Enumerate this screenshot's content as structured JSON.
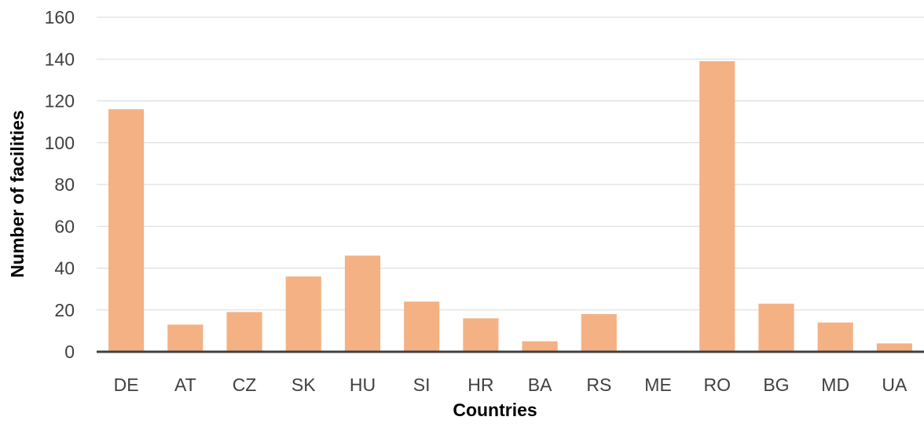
{
  "chart_data": {
    "type": "bar",
    "title": "",
    "xlabel": "Countries",
    "ylabel": "Number of facilities",
    "categories": [
      "DE",
      "AT",
      "CZ",
      "SK",
      "HU",
      "SI",
      "HR",
      "BA",
      "RS",
      "ME",
      "RO",
      "BG",
      "MD",
      "UA"
    ],
    "values": [
      116,
      13,
      19,
      36,
      46,
      24,
      16,
      5,
      18,
      0,
      139,
      23,
      14,
      4
    ],
    "ylim": [
      0,
      160
    ],
    "yticks": [
      "0",
      "20",
      "40",
      "60",
      "80",
      "100",
      "120",
      "140",
      "160"
    ],
    "grid": true,
    "legend": "none",
    "colors": {
      "bar": "#F4B183",
      "grid": "#D9D9D9",
      "axis": "#404040"
    }
  }
}
